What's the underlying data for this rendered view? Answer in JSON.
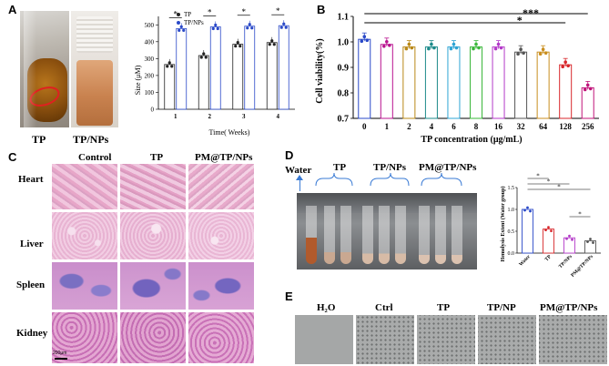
{
  "panels": {
    "A": {
      "label": "A",
      "photo_labels": [
        "TP",
        "TP/NPs"
      ],
      "chart": {
        "type": "bar",
        "xlabel": "Time( Weeks)",
        "ylabel": "Size (μM)",
        "categories": [
          "1",
          "2",
          "3",
          "4"
        ],
        "legend": [
          "TP",
          "TP/NPs"
        ],
        "yticks": [
          "0",
          "100",
          "200",
          "300",
          "400",
          "500"
        ],
        "sig": [
          "*",
          "*",
          "*",
          "*"
        ]
      }
    },
    "B": {
      "label": "B",
      "chart": {
        "xlabel": "TP concentration (μg/mL)",
        "ylabel": "Cell viability(%)",
        "categories": [
          "0",
          "1",
          "2",
          "4",
          "6",
          "8",
          "16",
          "32",
          "64",
          "128",
          "256"
        ],
        "yticks": [
          "0.7",
          "0.8",
          "0.9",
          "1.0",
          "1.1"
        ],
        "sig": [
          "***",
          "*"
        ]
      }
    },
    "C": {
      "label": "C",
      "columns": [
        "Control",
        "TP",
        "PM@TP/NPs"
      ],
      "rows": [
        "Heart",
        "Liver",
        "Spleen",
        "Kidney"
      ],
      "scale": "200μm"
    },
    "D": {
      "label": "D",
      "labels": [
        "Water",
        "TP",
        "TP/NPs",
        "PM@TP/NPs"
      ],
      "chart": {
        "ylabel": "Hemolysis Extent (Water group)",
        "categories": [
          "Water",
          "TP",
          "TP/NPs",
          "PM@TP/NPs"
        ],
        "yticks": [
          "0.0",
          "0.5",
          "1.0",
          "1.5"
        ],
        "sig": [
          "*",
          "*",
          "*",
          "*"
        ]
      }
    },
    "E": {
      "label": "E",
      "columns": [
        "H₂O",
        "Ctrl",
        "TP",
        "TP/NP",
        "PM@TP/NPs"
      ]
    }
  },
  "chart_data": [
    {
      "type": "bar",
      "categories": [
        "1",
        "2",
        "3",
        "4"
      ],
      "series": [
        {
          "name": "TP",
          "values": [
            265,
            318,
            385,
            395
          ]
        },
        {
          "name": "TP/NPs",
          "values": [
            478,
            488,
            492,
            495
          ]
        }
      ],
      "xlabel": "Time( Weeks)",
      "ylabel": "Size (μM)",
      "ylim": [
        0,
        550
      ],
      "legend": "top-left"
    },
    {
      "type": "bar",
      "categories": [
        "0",
        "1",
        "2",
        "4",
        "6",
        "8",
        "16",
        "32",
        "64",
        "128",
        "256"
      ],
      "values": [
        1.01,
        0.99,
        0.98,
        0.98,
        0.98,
        0.98,
        0.98,
        0.96,
        0.96,
        0.91,
        0.82
      ],
      "colors": [
        "#2a49c8",
        "#b9138f",
        "#b98817",
        "#1c8a8a",
        "#2ea4d4",
        "#3ab73a",
        "#b43ac9",
        "#555555",
        "#c98e1f",
        "#d8272b",
        "#c0157a"
      ],
      "xlabel": "TP concentration (μg/mL)",
      "ylabel": "Cell viability(%)",
      "ylim": [
        0.7,
        1.1
      ]
    },
    {
      "type": "bar",
      "categories": [
        "Water",
        "TP",
        "TP/NPs",
        "PM@TP/NPs"
      ],
      "values": [
        1.0,
        0.55,
        0.35,
        0.28
      ],
      "colors": [
        "#2a49c8",
        "#d8272b",
        "#b43ac9",
        "#555555"
      ],
      "ylabel": "Hemolysis Extent (Water group)",
      "ylim": [
        0,
        1.5
      ]
    }
  ]
}
